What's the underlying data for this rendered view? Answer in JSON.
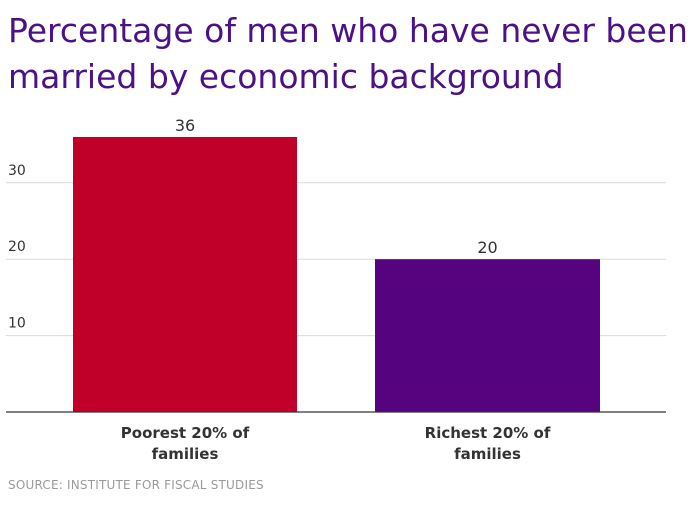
{
  "chart_data": {
    "type": "bar",
    "title": "Percentage of men who have never been married by economic background",
    "categories": [
      "Poorest 20% of families",
      "Richest 20% of families"
    ],
    "category_lines": [
      [
        "Poorest 20% of",
        "families"
      ],
      [
        "Richest 20% of",
        "families"
      ]
    ],
    "values": [
      36,
      20
    ],
    "data_labels": [
      "36",
      "20"
    ],
    "bar_colors": [
      "#c1002a",
      "#560380"
    ],
    "yticks": [
      10,
      20,
      30
    ],
    "ytick_labels": [
      "10",
      "20",
      "30"
    ],
    "ylim": [
      0,
      38
    ],
    "grid": true,
    "xlabel": "",
    "ylabel": ""
  },
  "source": "SOURCE: INSTITUTE FOR FISCAL STUDIES"
}
